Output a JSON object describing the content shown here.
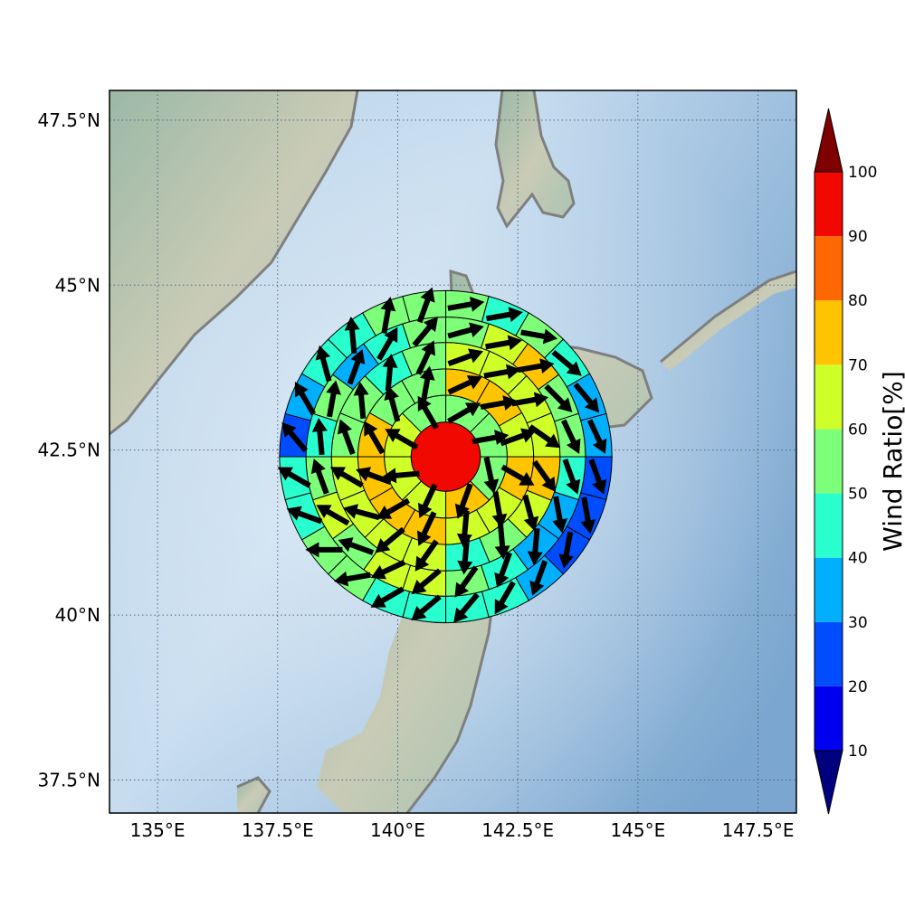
{
  "chart_data": {
    "type": "heatmap",
    "subtype": "polar-sector-map-with-wind-arrows",
    "xaxis": {
      "ticks": [
        135,
        137.5,
        140,
        142.5,
        145,
        147.5
      ],
      "tick_labels": [
        "135°E",
        "137.5°E",
        "140°E",
        "142.5°E",
        "145°E",
        "147.5°E"
      ],
      "range": [
        134,
        148.3
      ]
    },
    "yaxis": {
      "ticks": [
        37.5,
        40,
        42.5,
        45,
        47.5
      ],
      "tick_labels": [
        "37.5°N",
        "40°N",
        "42.5°N",
        "45°N",
        "47.5°N"
      ],
      "range": [
        37,
        47.95
      ]
    },
    "grid": true,
    "center": {
      "lon": 141.0,
      "lat": 42.4
    },
    "center_value": 95,
    "ring_edges_deg": [
      0.72,
      1.28,
      1.83,
      2.38,
      2.91,
      3.46
    ],
    "rings": [
      {
        "sector_count": 8,
        "start_bearing": 0,
        "values": [
          55,
          55,
          55,
          70,
          65,
          65,
          65,
          55
        ],
        "wind_dir_deg": [
          60,
          80,
          168,
          200,
          205,
          265,
          300,
          330
        ]
      },
      {
        "sector_count": 12,
        "start_bearing": 0,
        "values": [
          75,
          75,
          65,
          75,
          65,
          65,
          75,
          75,
          70,
          70,
          55,
          55
        ],
        "wind_dir_deg": [
          65,
          80,
          70,
          120,
          170,
          185,
          205,
          240,
          290,
          330,
          345,
          10
        ]
      },
      {
        "sector_count": 16,
        "start_bearing": 0,
        "values": [
          65,
          65,
          60,
          65,
          75,
          65,
          55,
          45,
          65,
          60,
          65,
          65,
          55,
          55,
          45,
          55
        ],
        "wind_dir_deg": [
          70,
          80,
          80,
          125,
          145,
          165,
          175,
          185,
          215,
          230,
          285,
          300,
          340,
          355,
          5,
          25
        ]
      },
      {
        "sector_count": 20,
        "start_bearing": 0,
        "values": [
          55,
          65,
          75,
          55,
          55,
          45,
          35,
          35,
          45,
          55,
          65,
          65,
          55,
          65,
          55,
          45,
          55,
          35,
          45,
          55
        ],
        "wind_dir_deg": [
          75,
          80,
          80,
          135,
          155,
          160,
          170,
          185,
          200,
          215,
          230,
          245,
          290,
          300,
          340,
          355,
          10,
          20,
          30,
          40
        ]
      },
      {
        "sector_count": 24,
        "start_bearing": 0,
        "values": [
          55,
          45,
          55,
          45,
          35,
          35,
          25,
          25,
          25,
          35,
          45,
          45,
          45,
          45,
          55,
          55,
          45,
          45,
          25,
          35,
          45,
          45,
          55,
          55
        ],
        "wind_dir_deg": [
          80,
          80,
          100,
          130,
          140,
          155,
          160,
          170,
          190,
          200,
          210,
          220,
          230,
          240,
          260,
          270,
          290,
          300,
          320,
          330,
          345,
          355,
          10,
          20
        ]
      }
    ],
    "colorbar": {
      "label": "Wind Ratio[%]",
      "ticks": [
        10,
        20,
        30,
        40,
        50,
        60,
        70,
        80,
        90,
        100
      ],
      "colors": {
        "under": "#00007f",
        "10-20": "#0000f1",
        "20-30": "#004cff",
        "30-40": "#00b0ff",
        "40-50": "#29ffce",
        "50-60": "#7dff7a",
        "60-70": "#ceff29",
        "70-80": "#ffc400",
        "80-90": "#ff6800",
        "90-100": "#f10800",
        "over": "#7f0000"
      }
    }
  }
}
